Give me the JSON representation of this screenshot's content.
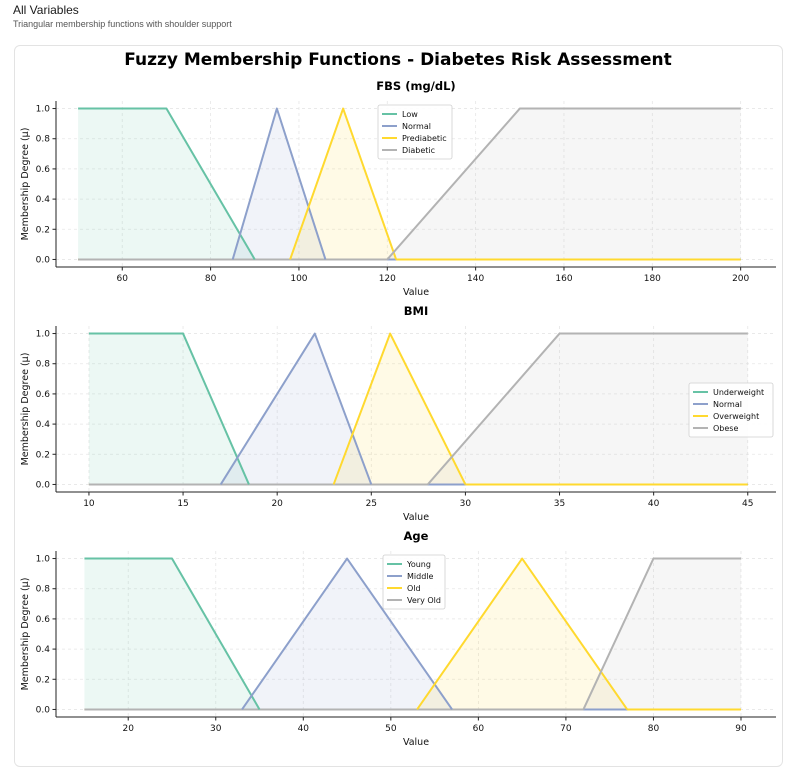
{
  "page": {
    "title": "All Variables",
    "subtitle": "Triangular membership functions with shoulder support"
  },
  "colors": {
    "Low": "#66c2a5",
    "Normal": "#8da0cb",
    "Prediabetic": "#ffd92f",
    "Diabetic": "#b3b3b3"
  },
  "chart_data": [
    {
      "type": "line",
      "suptitle": "Fuzzy Membership Functions - Diabetes Risk Assessment",
      "title": "FBS (mg/dL)",
      "xlabel": "Value",
      "ylabel": "Membership Degree (μ)",
      "xlim": [
        45,
        208
      ],
      "ylim": [
        -0.05,
        1.05
      ],
      "xticks": [
        60,
        80,
        100,
        120,
        140,
        160,
        180,
        200
      ],
      "yticks": [
        0.0,
        0.2,
        0.4,
        0.6,
        0.8,
        1.0
      ],
      "grid": true,
      "legend_position": "top-center",
      "domain": [
        50,
        200
      ],
      "series": [
        {
          "name": "Low",
          "color": "#66c2a5",
          "points": [
            [
              50,
              1
            ],
            [
              70,
              1
            ],
            [
              90,
              0
            ]
          ]
        },
        {
          "name": "Normal",
          "color": "#8da0cb",
          "points": [
            [
              85,
              0
            ],
            [
              95,
              1
            ],
            [
              106,
              0
            ]
          ]
        },
        {
          "name": "Prediabetic",
          "color": "#ffd92f",
          "points": [
            [
              98,
              0
            ],
            [
              110,
              1
            ],
            [
              122,
              0
            ]
          ]
        },
        {
          "name": "Diabetic",
          "color": "#b3b3b3",
          "points": [
            [
              120,
              0
            ],
            [
              150,
              1
            ],
            [
              200,
              1
            ]
          ]
        }
      ]
    },
    {
      "type": "line",
      "title": "BMI",
      "xlabel": "Value",
      "ylabel": "Membership Degree (μ)",
      "xlim": [
        8.25,
        46.5
      ],
      "ylim": [
        -0.05,
        1.05
      ],
      "xticks": [
        10,
        15,
        20,
        25,
        30,
        35,
        40,
        45
      ],
      "yticks": [
        0.0,
        0.2,
        0.4,
        0.6,
        0.8,
        1.0
      ],
      "grid": true,
      "legend_position": "center-right",
      "domain": [
        10,
        45
      ],
      "series": [
        {
          "name": "Underweight",
          "color": "#66c2a5",
          "points": [
            [
              10,
              1
            ],
            [
              15,
              1
            ],
            [
              18.5,
              0
            ]
          ]
        },
        {
          "name": "Normal",
          "color": "#8da0cb",
          "points": [
            [
              17,
              0
            ],
            [
              22,
              1
            ],
            [
              25,
              0
            ]
          ]
        },
        {
          "name": "Overweight",
          "color": "#ffd92f",
          "points": [
            [
              23,
              0
            ],
            [
              26,
              1
            ],
            [
              30,
              0
            ]
          ]
        },
        {
          "name": "Obese",
          "color": "#b3b3b3",
          "points": [
            [
              28,
              0
            ],
            [
              35,
              1
            ],
            [
              45,
              1
            ]
          ]
        }
      ]
    },
    {
      "type": "line",
      "title": "Age",
      "xlabel": "Value",
      "ylabel": "Membership Degree (μ)",
      "xlim": [
        11.75,
        94
      ],
      "ylim": [
        -0.05,
        1.05
      ],
      "xticks": [
        20,
        30,
        40,
        50,
        60,
        70,
        80,
        90
      ],
      "yticks": [
        0.0,
        0.2,
        0.4,
        0.6,
        0.8,
        1.0
      ],
      "grid": true,
      "legend_position": "top-center",
      "domain": [
        15,
        90
      ],
      "series": [
        {
          "name": "Young",
          "color": "#66c2a5",
          "points": [
            [
              15,
              1
            ],
            [
              25,
              1
            ],
            [
              35,
              0
            ]
          ]
        },
        {
          "name": "Middle",
          "color": "#8da0cb",
          "points": [
            [
              33,
              0
            ],
            [
              45,
              1
            ],
            [
              57,
              0
            ]
          ]
        },
        {
          "name": "Old",
          "color": "#ffd92f",
          "points": [
            [
              53,
              0
            ],
            [
              65,
              1
            ],
            [
              77,
              0
            ]
          ]
        },
        {
          "name": "Very Old",
          "color": "#b3b3b3",
          "points": [
            [
              72,
              0
            ],
            [
              80,
              1
            ],
            [
              90,
              1
            ]
          ]
        }
      ]
    }
  ]
}
